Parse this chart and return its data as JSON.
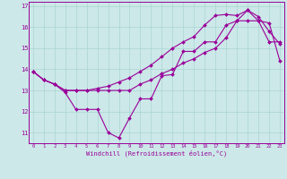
{
  "bg_color": "#cce8e8",
  "line_color": "#990099",
  "grid_color": "#aad4d4",
  "xlim_min": -0.4,
  "xlim_max": 23.4,
  "ylim_min": 10.5,
  "ylim_max": 17.2,
  "yticks": [
    11,
    12,
    13,
    14,
    15,
    16,
    17
  ],
  "xticks": [
    0,
    1,
    2,
    3,
    4,
    5,
    6,
    7,
    8,
    9,
    10,
    11,
    12,
    13,
    14,
    15,
    16,
    17,
    18,
    19,
    20,
    21,
    22,
    23
  ],
  "xlabel": "Windchill (Refroidissement éolien,°C)",
  "series1_x": [
    0,
    1,
    2,
    3,
    4,
    5,
    6,
    7,
    8,
    9,
    10,
    11,
    12,
    13,
    14,
    15,
    16,
    17,
    18,
    19,
    20,
    21,
    22,
    23
  ],
  "series1_y": [
    13.9,
    13.5,
    13.3,
    12.9,
    12.1,
    12.1,
    12.1,
    11.0,
    10.75,
    11.7,
    12.6,
    12.6,
    13.7,
    13.75,
    14.85,
    14.85,
    15.3,
    15.3,
    16.1,
    16.3,
    16.8,
    16.3,
    15.3,
    15.3
  ],
  "series2_x": [
    0,
    1,
    2,
    3,
    4,
    5,
    6,
    7,
    8,
    9,
    10,
    11,
    12,
    13,
    14,
    15,
    16,
    17,
    18,
    19,
    20,
    21,
    22,
    23
  ],
  "series2_y": [
    13.9,
    13.5,
    13.3,
    13.0,
    13.0,
    13.0,
    13.0,
    13.0,
    13.0,
    13.0,
    13.3,
    13.5,
    13.8,
    14.0,
    14.3,
    14.5,
    14.8,
    15.0,
    15.5,
    16.3,
    16.3,
    16.3,
    16.2,
    14.4
  ],
  "series3_x": [
    0,
    1,
    2,
    3,
    4,
    5,
    6,
    7,
    8,
    9,
    10,
    11,
    12,
    13,
    14,
    15,
    16,
    17,
    18,
    19,
    20,
    21,
    22,
    23
  ],
  "series3_y": [
    13.9,
    13.5,
    13.3,
    13.0,
    13.0,
    13.0,
    13.1,
    13.2,
    13.4,
    13.6,
    13.9,
    14.2,
    14.6,
    15.0,
    15.3,
    15.55,
    16.1,
    16.55,
    16.6,
    16.55,
    16.8,
    16.5,
    15.8,
    15.2
  ]
}
